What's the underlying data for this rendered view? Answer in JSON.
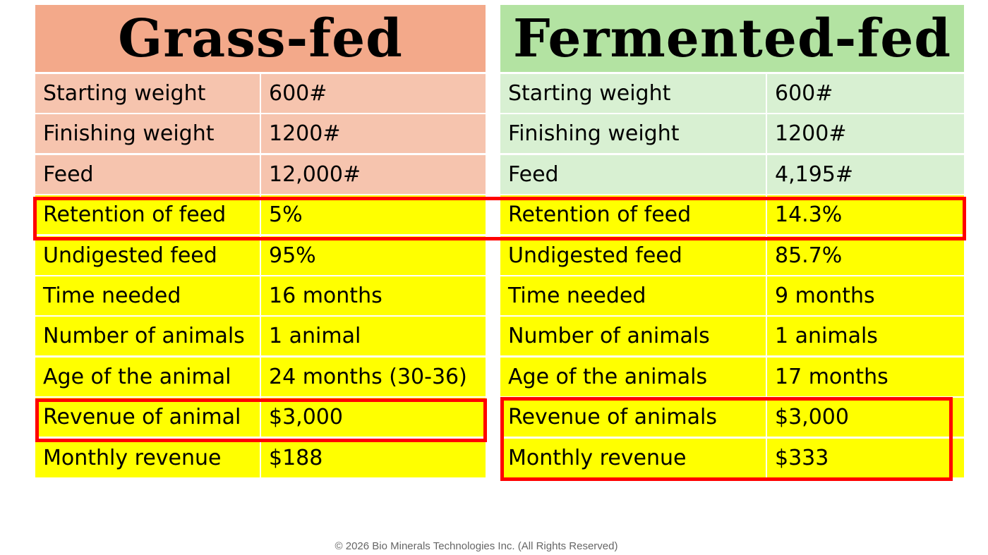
{
  "left": {
    "title": "Grass-fed",
    "rows": [
      {
        "label": "Starting weight",
        "value": "600#",
        "highlight": false
      },
      {
        "label": "Finishing weight",
        "value": "1200#",
        "highlight": false
      },
      {
        "label": "Feed",
        "value": "12,000#",
        "highlight": false
      },
      {
        "label": "Retention of feed",
        "value": "5%",
        "highlight": true
      },
      {
        "label": "Undigested feed",
        "value": "95%",
        "highlight": true
      },
      {
        "label": "Time needed",
        "value": "16 months",
        "highlight": true
      },
      {
        "label": "Number of animals",
        "value": "1 animal",
        "highlight": true
      },
      {
        "label": "Age of the animal",
        "value": "24 months (30-36)",
        "highlight": true
      },
      {
        "label": "Revenue of animal",
        "value": "$3,000",
        "highlight": true
      },
      {
        "label": "Monthly revenue",
        "value": "$188",
        "highlight": true
      }
    ]
  },
  "right": {
    "title": "Fermented-fed",
    "rows": [
      {
        "label": "Starting weight",
        "value": "600#",
        "highlight": false
      },
      {
        "label": "Finishing weight",
        "value": "1200#",
        "highlight": false
      },
      {
        "label": "Feed",
        "value": "4,195#",
        "highlight": false
      },
      {
        "label": "Retention of feed",
        "value": "14.3%",
        "highlight": true
      },
      {
        "label": "Undigested feed",
        "value": "85.7%",
        "highlight": true
      },
      {
        "label": "Time needed",
        "value": "9 months",
        "highlight": true
      },
      {
        "label": "Number of animals",
        "value": "1 animals",
        "highlight": true
      },
      {
        "label": "Age of the animals",
        "value": "17 months",
        "highlight": true
      },
      {
        "label": "Revenue of animals",
        "value": "$3,000",
        "highlight": true
      },
      {
        "label": "Monthly revenue",
        "value": "$333",
        "highlight": true
      }
    ]
  },
  "colors": {
    "left_header": "#f3a98a",
    "left_rows": "#f6c4ae",
    "right_header": "#b3e3a2",
    "right_rows": "#d8f0d2",
    "highlight": "#ffff00",
    "callout_border": "#ff0000"
  },
  "footer": "© 2026 Bio Minerals Technologies Inc. (All Rights Reserved)"
}
